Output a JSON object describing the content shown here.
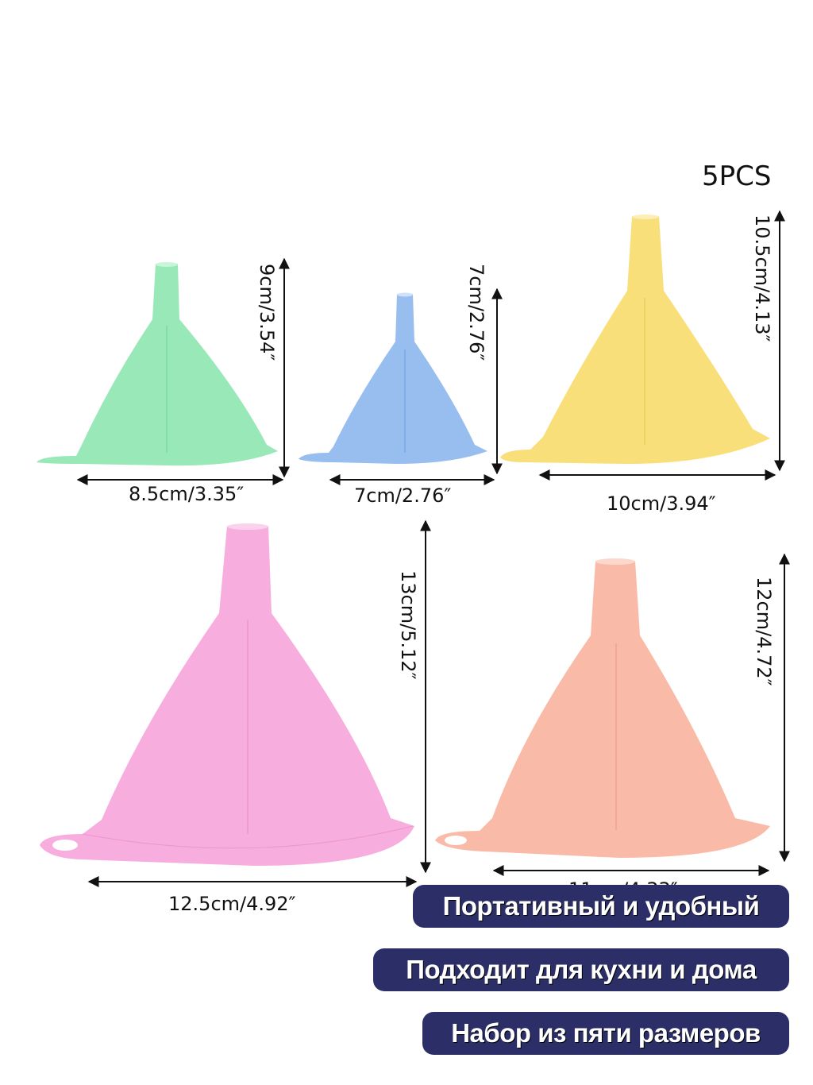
{
  "pack_count": "5PCS",
  "funnels": [
    {
      "color": "green",
      "fill": "#8de6b0",
      "height_label": "9cm/3.54″",
      "width_label": "8.5cm/3.35″"
    },
    {
      "color": "blue",
      "fill": "#8fb9ef",
      "height_label": "7cm/2.76″",
      "width_label": "7cm/2.76″"
    },
    {
      "color": "yellow",
      "fill": "#f7dc6f",
      "height_label": "10.5cm/4.13″",
      "width_label": "10cm/3.94″"
    },
    {
      "color": "pink",
      "fill": "#f7a6dc",
      "height_label": "13cm/5.12″",
      "width_label": "12.5cm/4.92″"
    },
    {
      "color": "peach",
      "fill": "#f9b59f",
      "height_label": "12cm/4.72″",
      "width_label": "11cm/4.33″"
    }
  ],
  "features": [
    "Портативный и удобный",
    "Подходит для кухни и дома",
    "Набор из пяти размеров"
  ],
  "colors": {
    "pill_bg": "#2c2e68",
    "pill_text": "#ffffff",
    "line": "#111111"
  }
}
